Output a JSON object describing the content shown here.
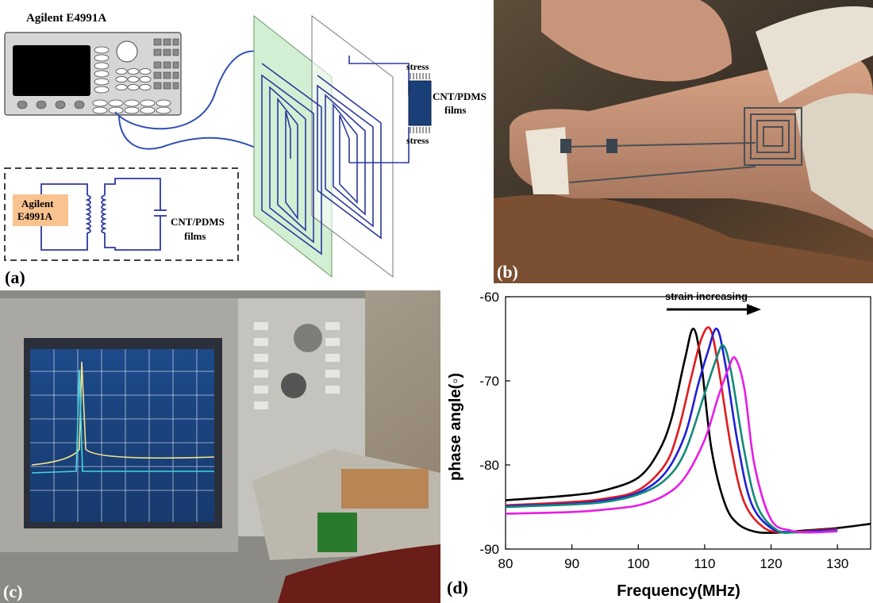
{
  "panel_a": {
    "instrument_title": "Agilent E4991A",
    "stress_top": "stress",
    "stress_bottom": "stress",
    "films_line1": "CNT/PDMS",
    "films_line2": "films",
    "circuit_box_line1": "Agilent",
    "circuit_box_line2": "E4991A",
    "circuit_films_line1": "CNT/PDMS",
    "circuit_films_line2": "films",
    "label": "(a)",
    "colors": {
      "inductor": "#2b3a9e",
      "cable": "#2f4fb3",
      "green_plane": "#cfeecf",
      "film": "#1a3f78",
      "circuit_box": "#f9c38f"
    }
  },
  "panel_b": {
    "label": "(b)"
  },
  "panel_c": {
    "label": "(c)"
  },
  "panel_d": {
    "label": "(d)",
    "annotation": "strain increasing"
  },
  "chart_data": {
    "type": "line",
    "xlabel": "Frequency(MHz)",
    "ylabel": "phase angle(◦)",
    "xlim": [
      80,
      135
    ],
    "ylim": [
      -90,
      -60
    ],
    "xticks": [
      80,
      90,
      100,
      110,
      120,
      130
    ],
    "yticks": [
      -60,
      -70,
      -80,
      -90
    ],
    "grid": false,
    "series": [
      {
        "color": "#000000",
        "x": [
          80,
          90,
          95,
          100,
          103,
          105,
          107,
          108.3,
          109.5,
          111,
          113,
          115,
          118,
          122,
          125,
          130,
          135
        ],
        "y": [
          -84.2,
          -83.6,
          -83.0,
          -81.5,
          -78.5,
          -74.5,
          -67.5,
          -63.8,
          -68.0,
          -78.0,
          -84.5,
          -87.0,
          -88.0,
          -88.0,
          -87.8,
          -87.5,
          -87.0
        ]
      },
      {
        "color": "#e31a1c",
        "x": [
          80,
          90,
          95,
          100,
          104,
          106,
          108,
          109.5,
          110.8,
          112,
          114,
          116,
          119,
          122,
          125,
          130
        ],
        "y": [
          -84.8,
          -84.4,
          -84.0,
          -83.0,
          -80.0,
          -76.0,
          -69.5,
          -65.0,
          -63.8,
          -68.0,
          -78.0,
          -84.5,
          -87.5,
          -88.0,
          -87.9,
          -87.6
        ]
      },
      {
        "color": "#1f1fd6",
        "x": [
          80,
          90,
          95,
          100,
          104,
          107,
          109,
          110.5,
          111.8,
          113,
          115,
          117,
          120,
          123,
          126,
          130
        ],
        "y": [
          -84.9,
          -84.6,
          -84.2,
          -83.3,
          -81.0,
          -76.5,
          -70.5,
          -66.5,
          -63.8,
          -67.5,
          -77.5,
          -84.5,
          -87.5,
          -88.0,
          -87.9,
          -87.7
        ]
      },
      {
        "color": "#138a78",
        "x": [
          80,
          90,
          95,
          100,
          104,
          107,
          110,
          111.7,
          112.8,
          114,
          116,
          118,
          121,
          124,
          127,
          130
        ],
        "y": [
          -85.0,
          -84.7,
          -84.4,
          -83.5,
          -81.8,
          -78.5,
          -71.5,
          -67.5,
          -65.8,
          -69.0,
          -78.5,
          -85.0,
          -87.8,
          -88.0,
          -88.0,
          -87.8
        ]
      },
      {
        "color": "#e61ee6",
        "x": [
          80,
          90,
          95,
          100,
          104,
          107,
          110,
          112,
          113.6,
          114.6,
          116,
          117.5,
          120,
          123,
          126,
          130
        ],
        "y": [
          -85.8,
          -85.6,
          -85.3,
          -84.8,
          -83.6,
          -81.5,
          -77.0,
          -72.0,
          -68.5,
          -67.3,
          -71.0,
          -80.0,
          -86.5,
          -87.8,
          -88.0,
          -87.9
        ]
      }
    ]
  }
}
